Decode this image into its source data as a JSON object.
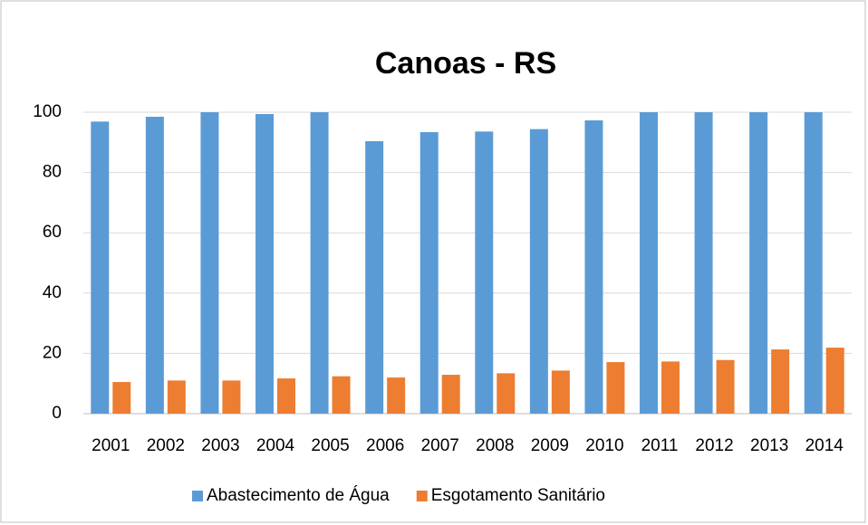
{
  "chart_data": {
    "type": "bar",
    "title": "Canoas - RS",
    "categories": [
      "2001",
      "2002",
      "2003",
      "2004",
      "2005",
      "2006",
      "2007",
      "2008",
      "2009",
      "2010",
      "2011",
      "2012",
      "2013",
      "2014"
    ],
    "series": [
      {
        "name": "Abastecimento de Água",
        "color": "#5b9bd5",
        "values": [
          96.9,
          98.5,
          100,
          99.4,
          100,
          90.4,
          93.4,
          93.6,
          94.4,
          97.3,
          100,
          100,
          100,
          100
        ]
      },
      {
        "name": "Esgotamento Sanitário",
        "color": "#ed7d31",
        "values": [
          10.5,
          11,
          11,
          11.7,
          12.4,
          12,
          12.9,
          13.4,
          14.3,
          17.1,
          17.3,
          17.8,
          21.3,
          21.9
        ]
      }
    ],
    "ylim": [
      0,
      100
    ],
    "yticks": [
      0,
      20,
      40,
      60,
      80,
      100
    ],
    "grid": true,
    "legend": "bottom"
  }
}
